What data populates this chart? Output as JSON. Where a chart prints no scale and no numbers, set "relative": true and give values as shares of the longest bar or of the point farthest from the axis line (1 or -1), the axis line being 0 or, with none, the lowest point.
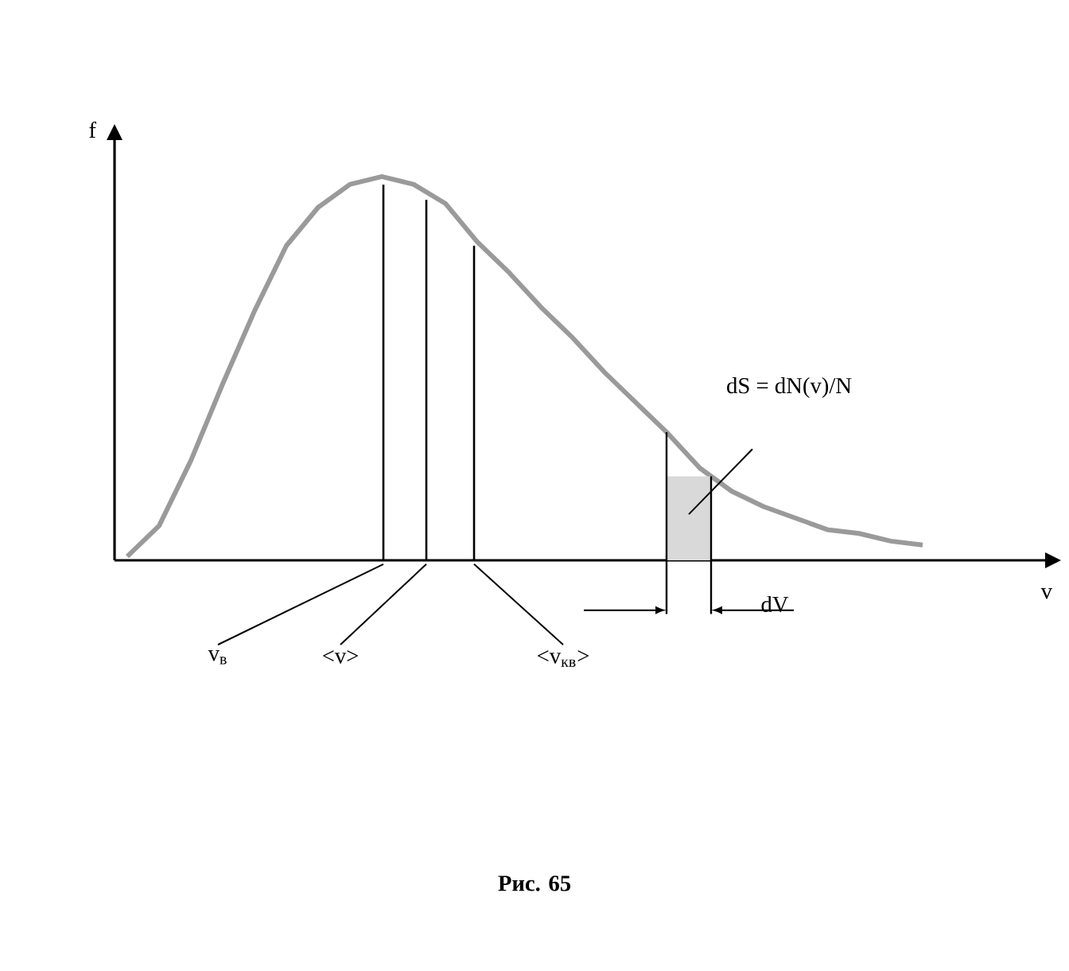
{
  "chart_data": {
    "type": "line",
    "relative": true,
    "xlabel": "v",
    "ylabel": "f",
    "color": "#9a9a9a",
    "categories": [
      null,
      null,
      null,
      null,
      null,
      null,
      null,
      null,
      null,
      null,
      null,
      null,
      null,
      null,
      null,
      null,
      null,
      null,
      null,
      null,
      null,
      null,
      null,
      null,
      null,
      null
    ],
    "values": [
      0.01,
      0.09,
      0.26,
      0.46,
      0.65,
      0.82,
      0.92,
      0.98,
      1.0,
      0.98,
      0.93,
      0.83,
      0.75,
      0.66,
      0.58,
      0.49,
      0.41,
      0.33,
      0.24,
      0.18,
      0.14,
      0.11,
      0.08,
      0.07,
      0.05,
      0.04
    ],
    "annotations": [
      "v$_{в}$",
      "<v>",
      "<v$_{кв}$>",
      "dS = dN(v)/N",
      "dV",
      "Рис. 65"
    ]
  }
}
